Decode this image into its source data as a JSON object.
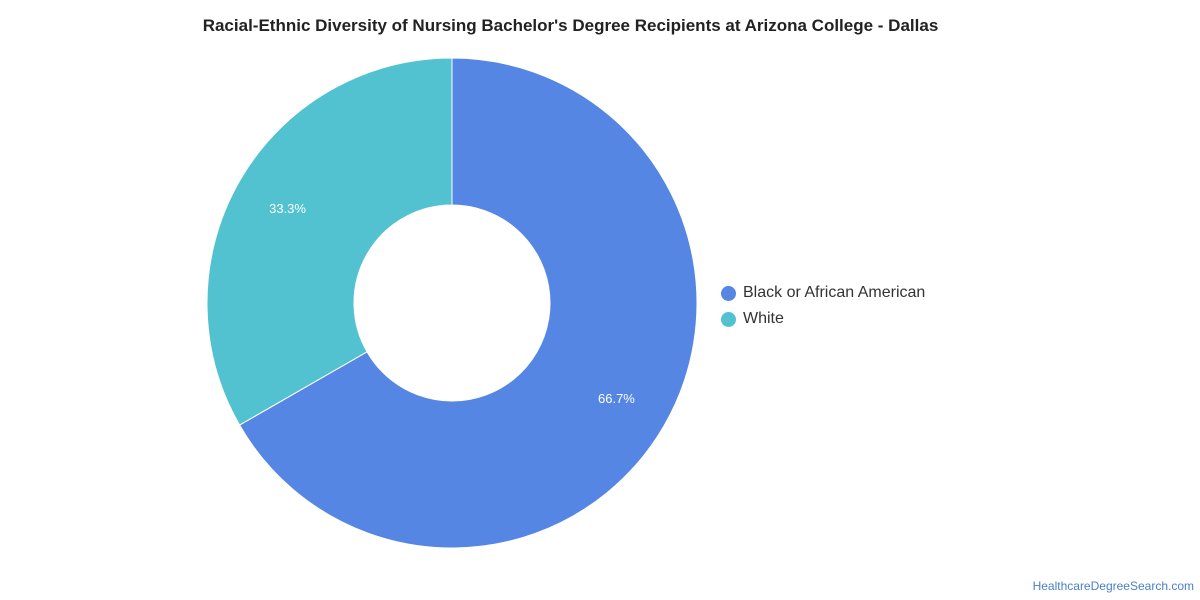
{
  "chart_data": {
    "type": "pie",
    "title": "Racial-Ethnic Diversity of Nursing Bachelor's Degree Recipients at Arizona College - Dallas",
    "donut": true,
    "slices": [
      {
        "name": "Black or African American",
        "value": 66.7,
        "label": "66.7%",
        "color": "#5586e3"
      },
      {
        "name": "White",
        "value": 33.3,
        "label": "33.3%",
        "color": "#52c2d0"
      }
    ],
    "legend_position": "right"
  },
  "credit": "HealthcareDegreeSearch.com"
}
